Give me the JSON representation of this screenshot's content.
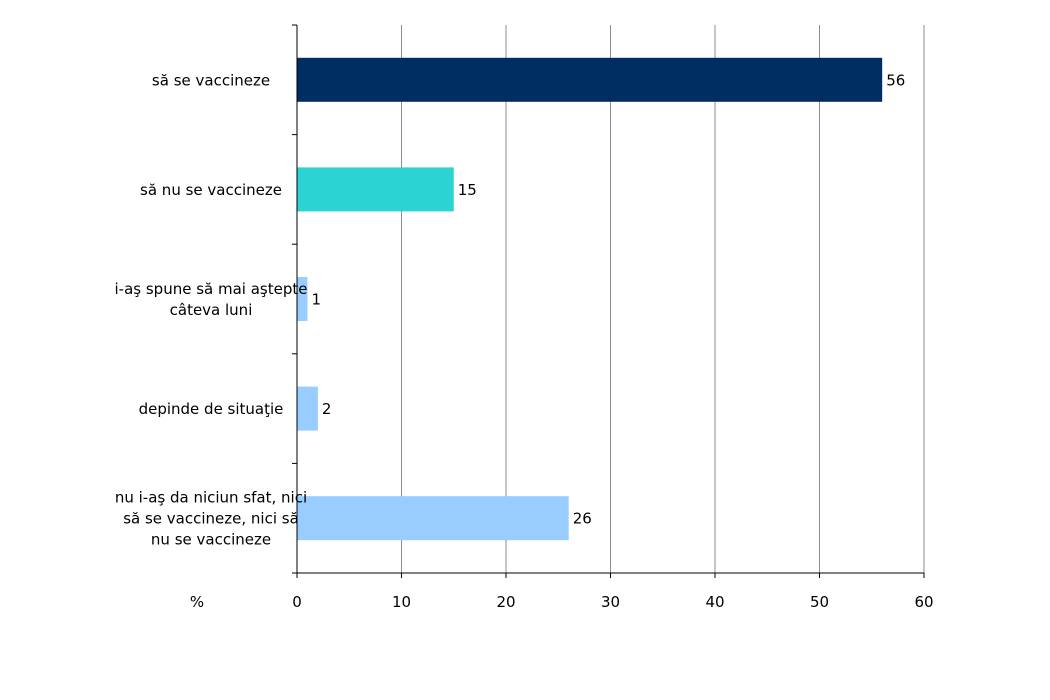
{
  "chart_data": {
    "type": "bar",
    "orientation": "horizontal",
    "categories": [
      [
        "să se vaccineze"
      ],
      [
        "să nu se vaccineze"
      ],
      [
        "i-aş spune să mai aştepte",
        "câteva luni"
      ],
      [
        "depinde de situaţie"
      ],
      [
        "nu i-aş da niciun sfat, nici",
        "să se vaccineze, nici să",
        "nu se vaccineze"
      ]
    ],
    "values": [
      56,
      15,
      1,
      2,
      26
    ],
    "value_labels": [
      "56",
      "15",
      "1",
      "2",
      "26"
    ],
    "colors": [
      "#002d62",
      "#2cd3d3",
      "#99ccff",
      "#99ccff",
      "#99ccff"
    ],
    "xlim": [
      0,
      60
    ],
    "xticks": [
      0,
      10,
      20,
      30,
      40,
      50,
      60
    ],
    "xtick_labels": [
      "0",
      "10",
      "20",
      "30",
      "40",
      "50",
      "60"
    ],
    "xlabel": "%",
    "grid": "vertical"
  }
}
